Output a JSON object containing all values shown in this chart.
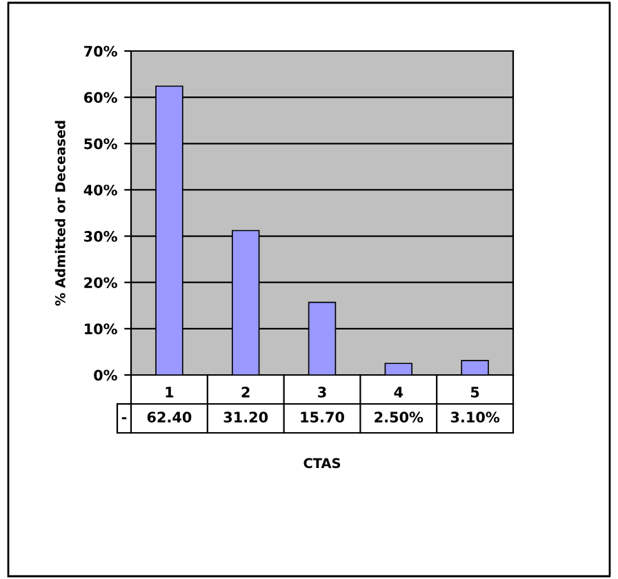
{
  "chart_data": {
    "type": "bar",
    "xlabel": "CTAS",
    "ylabel": "% Admitted or Deceased",
    "categories": [
      "1",
      "2",
      "3",
      "4",
      "5"
    ],
    "values": [
      62.4,
      31.2,
      15.7,
      2.5,
      3.1
    ],
    "value_labels": [
      "62.40",
      "31.20",
      "15.70",
      "2.50%",
      "3.10%"
    ],
    "annotations": [
      "-"
    ],
    "color": "#9999ff",
    "ylim": [
      0,
      70
    ],
    "yticks": [
      {
        "value": 0,
        "label": "0%"
      },
      {
        "value": 10,
        "label": "10%"
      },
      {
        "value": 20,
        "label": "20%"
      },
      {
        "value": 30,
        "label": "30%"
      },
      {
        "value": 40,
        "label": "40%"
      },
      {
        "value": 50,
        "label": "50%"
      },
      {
        "value": 60,
        "label": "60%"
      },
      {
        "value": 70,
        "label": "70%"
      }
    ],
    "grid": "y",
    "legend": false
  }
}
